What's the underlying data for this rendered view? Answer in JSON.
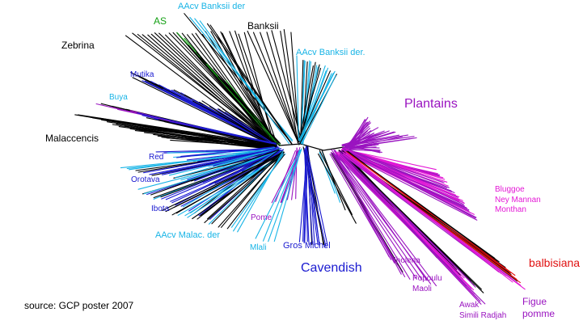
{
  "source": "source: GCP poster 2007",
  "colors": {
    "black": "#000000",
    "green": "#14a014",
    "cyan": "#18b4e6",
    "blue": "#1a1ad0",
    "purple": "#9a14c0",
    "magenta": "#e418d6",
    "red": "#e01010"
  },
  "labels": {
    "aacv_banksii_der_top": "AAcv Banksii der",
    "as": "AS",
    "banksii": "Banksii",
    "zebrina": "Zebrina",
    "aacv_banksii_der_right": "AAcv Banksii der.",
    "mutika": "Mutika",
    "buya": "Buya",
    "malaccensis": "Malaccencis",
    "red": "Red",
    "orotava": "Orotava",
    "ibota": "Ibota",
    "aacv_malac_der": "AAcv Malac. der",
    "pome": "Pome",
    "mlali": "Mlali",
    "gros_michel": "Gros Michel",
    "cavendish": "Cavendish",
    "plantains": "Plantains",
    "bluggoe": "Bluggoe",
    "ney_mannan": "Ney Mannan",
    "monthan": "Monthan",
    "balbisiana": "balbisiana",
    "iholena": "Iholena",
    "popoulu": "Popoulu",
    "maoli": "Maoli",
    "awak": "Awak",
    "simili_radjah": "Simili  Radjah",
    "figue": "Figue",
    "pomme": "pomme"
  }
}
